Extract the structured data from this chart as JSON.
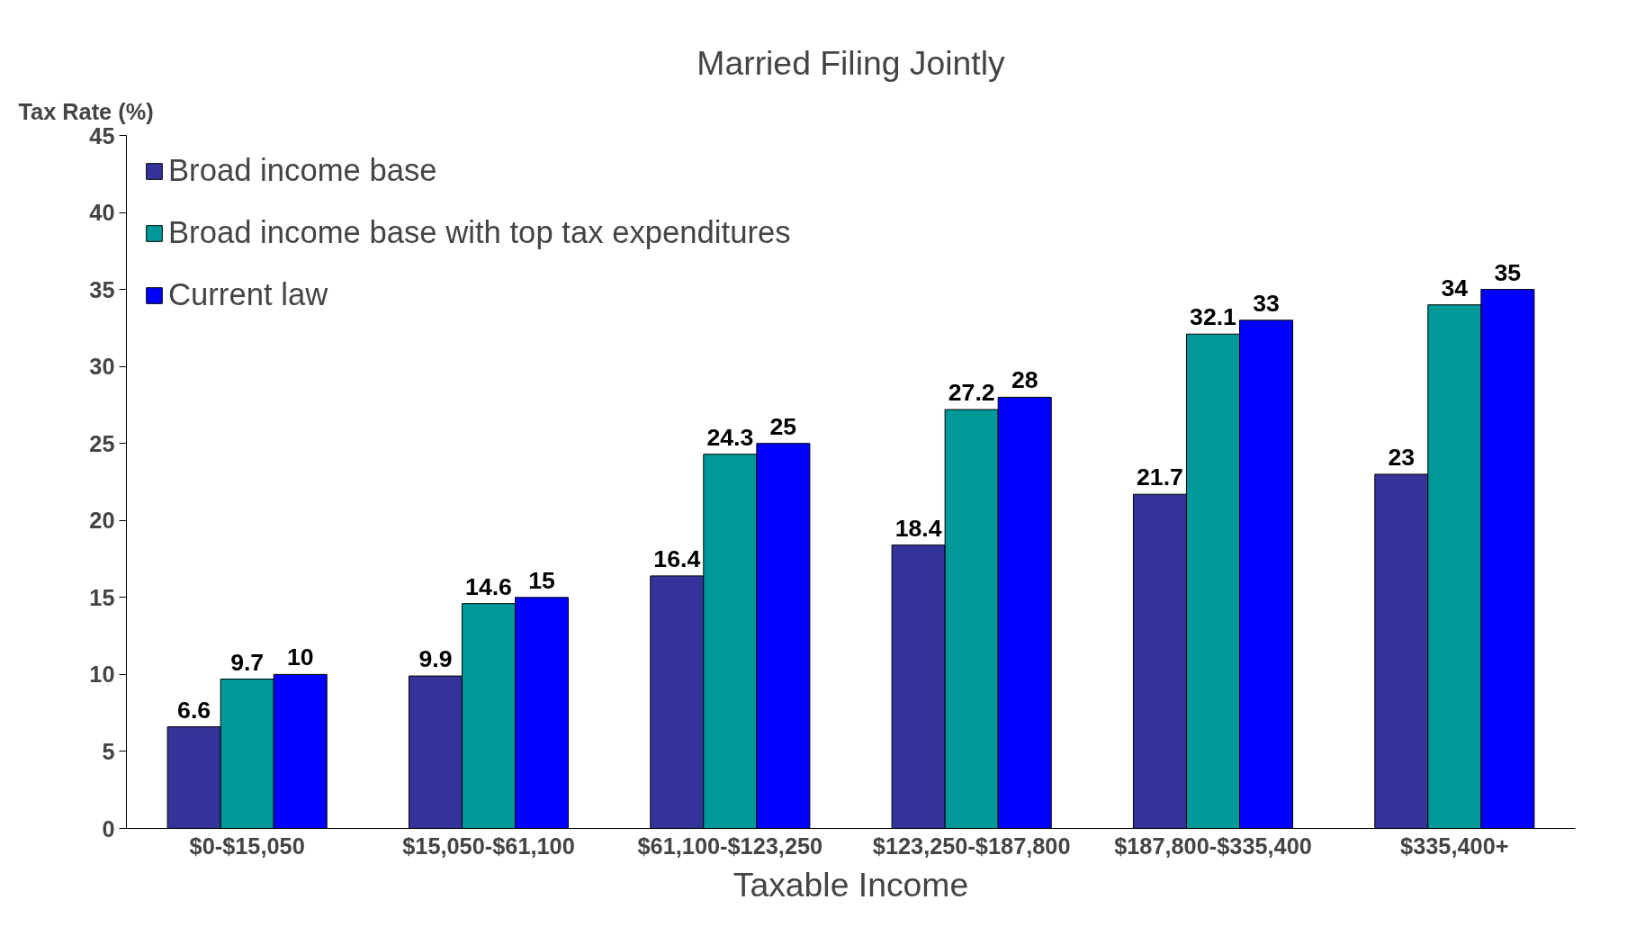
{
  "chart_data": {
    "type": "bar",
    "title": "Married Filing Jointly",
    "xlabel": "Taxable Income",
    "ylabel": "Tax Rate (%)",
    "categories": [
      "$0-$15,050",
      "$15,050-$61,100",
      "$61,100-$123,250",
      "$123,250-$187,800",
      "$187,800-$335,400",
      "$335,400+"
    ],
    "series": [
      {
        "name": "Broad income base",
        "color": "#333399",
        "values": [
          6.6,
          9.9,
          16.4,
          18.4,
          21.7,
          23
        ]
      },
      {
        "name": "Broad income base with top tax expenditures",
        "color": "#009999",
        "values": [
          9.7,
          14.6,
          24.3,
          27.2,
          32.1,
          34
        ]
      },
      {
        "name": "Current law",
        "color": "#0000ff",
        "values": [
          10,
          15,
          25,
          28,
          33,
          35
        ]
      }
    ],
    "ylim": [
      0,
      45
    ],
    "yticks": [
      0,
      5,
      10,
      15,
      20,
      25,
      30,
      35,
      40,
      45
    ],
    "grid": false,
    "legend": "top left",
    "data_labels": true
  }
}
